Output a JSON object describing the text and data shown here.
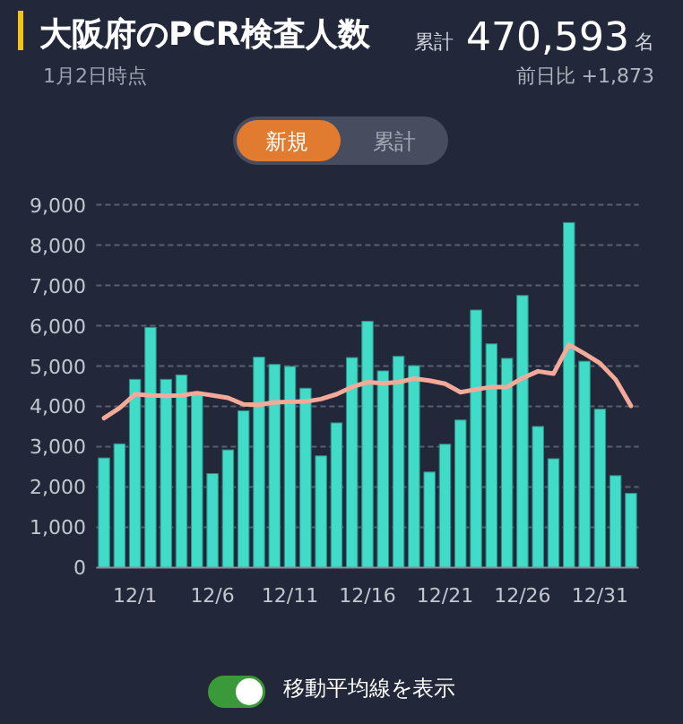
{
  "chart_data": {
    "type": "bar",
    "title": "大阪府のPCR検査人数",
    "subtitle": "1月2日時点",
    "annotations": [
      "累計",
      "470,593",
      "名",
      "前日比 +1,873",
      "新規",
      "累計",
      "移動平均線を表示"
    ],
    "categories": [
      null,
      null,
      "12/1",
      null,
      null,
      null,
      null,
      "12/6",
      null,
      null,
      null,
      null,
      "12/11",
      null,
      null,
      null,
      null,
      "12/16",
      null,
      null,
      null,
      null,
      "12/21",
      null,
      null,
      null,
      null,
      "12/26",
      null,
      null,
      null,
      null,
      "12/31",
      null,
      null
    ],
    "series": [
      {
        "color": "#40dcc8",
        "values": [
          2720,
          3070,
          4670,
          5960,
          4670,
          4780,
          4330,
          2330,
          2920,
          3890,
          5220,
          5040,
          4990,
          4450,
          2770,
          3590,
          5210,
          6110,
          4880,
          5240,
          5010,
          2370,
          3060,
          3660,
          6390,
          5550,
          5190,
          6750,
          3500,
          2700,
          8560,
          5120,
          3930,
          2280,
          1840
        ]
      },
      {
        "type": "line",
        "color": "#f4aa98",
        "values": [
          3710,
          3960,
          4300,
          4270,
          4260,
          4270,
          4330,
          4270,
          4210,
          4050,
          4040,
          4100,
          4110,
          4120,
          4180,
          4300,
          4480,
          4600,
          4570,
          4600,
          4690,
          4640,
          4560,
          4350,
          4420,
          4480,
          4480,
          4700,
          4870,
          4810,
          5530,
          5310,
          5070,
          4670,
          4010
        ]
      }
    ],
    "ylim": [
      0,
      9000
    ],
    "yticks": [
      {
        "value": 0,
        "label": "0"
      },
      {
        "value": 1000,
        "label": "1,000"
      },
      {
        "value": 2000,
        "label": "2,000"
      },
      {
        "value": 3000,
        "label": "3,000"
      },
      {
        "value": 4000,
        "label": "4,000"
      },
      {
        "value": 5000,
        "label": "5,000"
      },
      {
        "value": 6000,
        "label": "6,000"
      },
      {
        "value": 7000,
        "label": "7,000"
      },
      {
        "value": 8000,
        "label": "8,000"
      },
      {
        "value": 9000,
        "label": "9,000"
      }
    ],
    "grid": "y"
  }
}
